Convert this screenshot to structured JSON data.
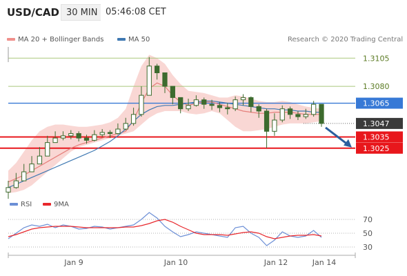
{
  "header": {
    "pair": "USD/CAD",
    "timeframe": "30 MIN",
    "time": "05:46:08 CET"
  },
  "legend": {
    "ma20_label": "MA 20 + Bollinger Bands",
    "ma50_label": "MA 50",
    "research": "Research © 2020 Trading Central",
    "rsi_label": "RSI",
    "ma9_label": "9MA"
  },
  "colors": {
    "candle": "#3d6b2e",
    "bollinger_fill": "#f7c9c6",
    "ma20": "#e57f7b",
    "ma50": "#3f79b2",
    "support": "#e8171c",
    "green_level": "#a9c77c",
    "blue_level": "#3779d6",
    "current": "#3a3a3a",
    "rsi": "#6c8fd6",
    "ma9": "#e8272c",
    "arrow": "#2b5f9e"
  },
  "chart_data": [
    {
      "type": "candlestick",
      "ylim": [
        1.2985,
        1.3115
      ],
      "x_ticks": [
        "Jan 9",
        "Jan 10",
        "Jan 12",
        "Jan 14"
      ],
      "levels": [
        {
          "value": 1.3105,
          "label": "1.3105",
          "kind": "resistance-green"
        },
        {
          "value": 1.308,
          "label": "1.3080",
          "kind": "resistance-green"
        },
        {
          "value": 1.3065,
          "label": "1.3065",
          "kind": "resistance-blue"
        },
        {
          "value": 1.3047,
          "label": "1.3047",
          "kind": "current"
        },
        {
          "value": 1.3035,
          "label": "1.3035",
          "kind": "support"
        },
        {
          "value": 1.3025,
          "label": "1.3025",
          "kind": "support"
        }
      ],
      "series": [
        {
          "name": "MA 20",
          "values": [
            1.2995,
            1.2998,
            1.3001,
            1.3005,
            1.3009,
            1.3013,
            1.3017,
            1.3021,
            1.3025,
            1.3028,
            1.303,
            1.3032,
            1.3034,
            1.3036,
            1.3038,
            1.304,
            1.305,
            1.3065,
            1.3078,
            1.3083,
            1.308,
            1.3072,
            1.3066,
            1.3063,
            1.3065,
            1.3066,
            1.3066,
            1.3064,
            1.3062,
            1.306,
            1.3058,
            1.3057,
            1.3056,
            1.3056,
            1.3057,
            1.3057,
            1.3057,
            1.3056,
            1.3055,
            1.3055,
            1.3055
          ]
        },
        {
          "name": "MA 50",
          "values": [
            1.299,
            1.2993,
            1.2996,
            1.2999,
            1.3002,
            1.3005,
            1.3008,
            1.3011,
            1.3014,
            1.3017,
            1.302,
            1.3023,
            1.3027,
            1.3031,
            1.3036,
            1.3042,
            1.3049,
            1.3055,
            1.3059,
            1.3062,
            1.3063,
            1.3063,
            1.3064,
            1.3065,
            1.3066,
            1.3067,
            1.3067,
            1.3066,
            1.3065,
            1.3064,
            1.3063,
            1.3062,
            1.3061,
            1.306,
            1.306,
            1.3059,
            1.3059,
            1.3058,
            1.3058,
            1.3057,
            1.3057
          ]
        },
        {
          "name": "Bollinger Upper",
          "values": [
            1.3005,
            1.3012,
            1.3022,
            1.3032,
            1.304,
            1.3044,
            1.3046,
            1.3046,
            1.3045,
            1.3044,
            1.3044,
            1.3045,
            1.3046,
            1.3048,
            1.3052,
            1.306,
            1.308,
            1.3098,
            1.3108,
            1.3105,
            1.31,
            1.309,
            1.3082,
            1.3076,
            1.3075,
            1.3074,
            1.3072,
            1.307,
            1.307,
            1.3072,
            1.3071,
            1.3069,
            1.3067,
            1.3066,
            1.3066,
            1.3067,
            1.3066,
            1.3064,
            1.3062,
            1.3061,
            1.306
          ]
        },
        {
          "name": "Bollinger Lower",
          "values": [
            1.2985,
            1.2986,
            1.2988,
            1.2992,
            1.2998,
            1.3004,
            1.301,
            1.3016,
            1.3022,
            1.3026,
            1.3028,
            1.303,
            1.3032,
            1.3034,
            1.3036,
            1.3038,
            1.304,
            1.3046,
            1.3052,
            1.3056,
            1.3058,
            1.3058,
            1.3058,
            1.3056,
            1.3055,
            1.3056,
            1.3058,
            1.3056,
            1.305,
            1.3044,
            1.304,
            1.304,
            1.3041,
            1.3042,
            1.3044,
            1.3046,
            1.3047,
            1.3047,
            1.3047,
            1.3048,
            1.3049
          ]
        }
      ],
      "close": [
        1.299,
        1.2996,
        1.3004,
        1.3011,
        1.3018,
        1.303,
        1.3034,
        1.3036,
        1.3038,
        1.3034,
        1.3032,
        1.3037,
        1.3039,
        1.3038,
        1.3042,
        1.3047,
        1.3055,
        1.3072,
        1.3098,
        1.3092,
        1.308,
        1.307,
        1.306,
        1.3063,
        1.3068,
        1.3064,
        1.3063,
        1.3061,
        1.306,
        1.3068,
        1.307,
        1.3062,
        1.3058,
        1.304,
        1.305,
        1.306,
        1.3055,
        1.3053,
        1.3055,
        1.3064,
        1.3047
      ],
      "high": [
        1.2996,
        1.3003,
        1.3011,
        1.3018,
        1.3026,
        1.3036,
        1.304,
        1.304,
        1.3041,
        1.304,
        1.3037,
        1.3041,
        1.3042,
        1.3041,
        1.3047,
        1.3052,
        1.3061,
        1.308,
        1.3106,
        1.31,
        1.3087,
        1.3076,
        1.3067,
        1.3069,
        1.3072,
        1.307,
        1.3068,
        1.3066,
        1.3065,
        1.3071,
        1.3073,
        1.3071,
        1.3064,
        1.306,
        1.3056,
        1.3063,
        1.3062,
        1.3058,
        1.306,
        1.3067,
        1.3064
      ],
      "low": [
        1.298,
        1.2989,
        1.2996,
        1.3004,
        1.3011,
        1.3018,
        1.303,
        1.3032,
        1.3033,
        1.3031,
        1.3029,
        1.3031,
        1.3035,
        1.3034,
        1.3037,
        1.3041,
        1.3045,
        1.3053,
        1.3072,
        1.3086,
        1.3074,
        1.3064,
        1.3056,
        1.3058,
        1.3062,
        1.306,
        1.3059,
        1.3057,
        1.3055,
        1.3058,
        1.3063,
        1.3057,
        1.3052,
        1.3025,
        1.3036,
        1.3048,
        1.3051,
        1.305,
        1.3051,
        1.3053,
        1.3044
      ],
      "forecast_arrow_to": 1.3025
    },
    {
      "type": "line",
      "title": "RSI",
      "ylim": [
        20,
        85
      ],
      "y_ticks": [
        70,
        50,
        30
      ],
      "series": [
        {
          "name": "RSI",
          "values": [
            42,
            50,
            58,
            62,
            60,
            63,
            58,
            62,
            60,
            56,
            57,
            60,
            59,
            56,
            58,
            60,
            62,
            70,
            80,
            72,
            60,
            52,
            45,
            48,
            52,
            50,
            48,
            46,
            44,
            58,
            60,
            50,
            44,
            32,
            40,
            52,
            46,
            44,
            46,
            54,
            44
          ]
        },
        {
          "name": "9MA",
          "values": [
            45,
            48,
            52,
            56,
            58,
            59,
            60,
            60,
            60,
            59,
            58,
            58,
            58,
            58,
            58,
            59,
            59,
            61,
            64,
            68,
            70,
            66,
            60,
            55,
            50,
            48,
            48,
            48,
            47,
            49,
            51,
            52,
            50,
            45,
            42,
            44,
            46,
            47,
            47,
            48,
            46
          ]
        }
      ]
    }
  ],
  "price_labels": {
    "l1": "1.3105",
    "l2": "1.3080",
    "l3": "1.3065",
    "l4": "1.3047",
    "l5": "1.3035",
    "l6": "1.3025"
  },
  "rsi_labels": {
    "t70": "70",
    "t50": "50",
    "t30": "30"
  },
  "x_labels": {
    "a": "Jan 9",
    "b": "Jan 10",
    "c": "Jan 12",
    "d": "Jan 14"
  }
}
